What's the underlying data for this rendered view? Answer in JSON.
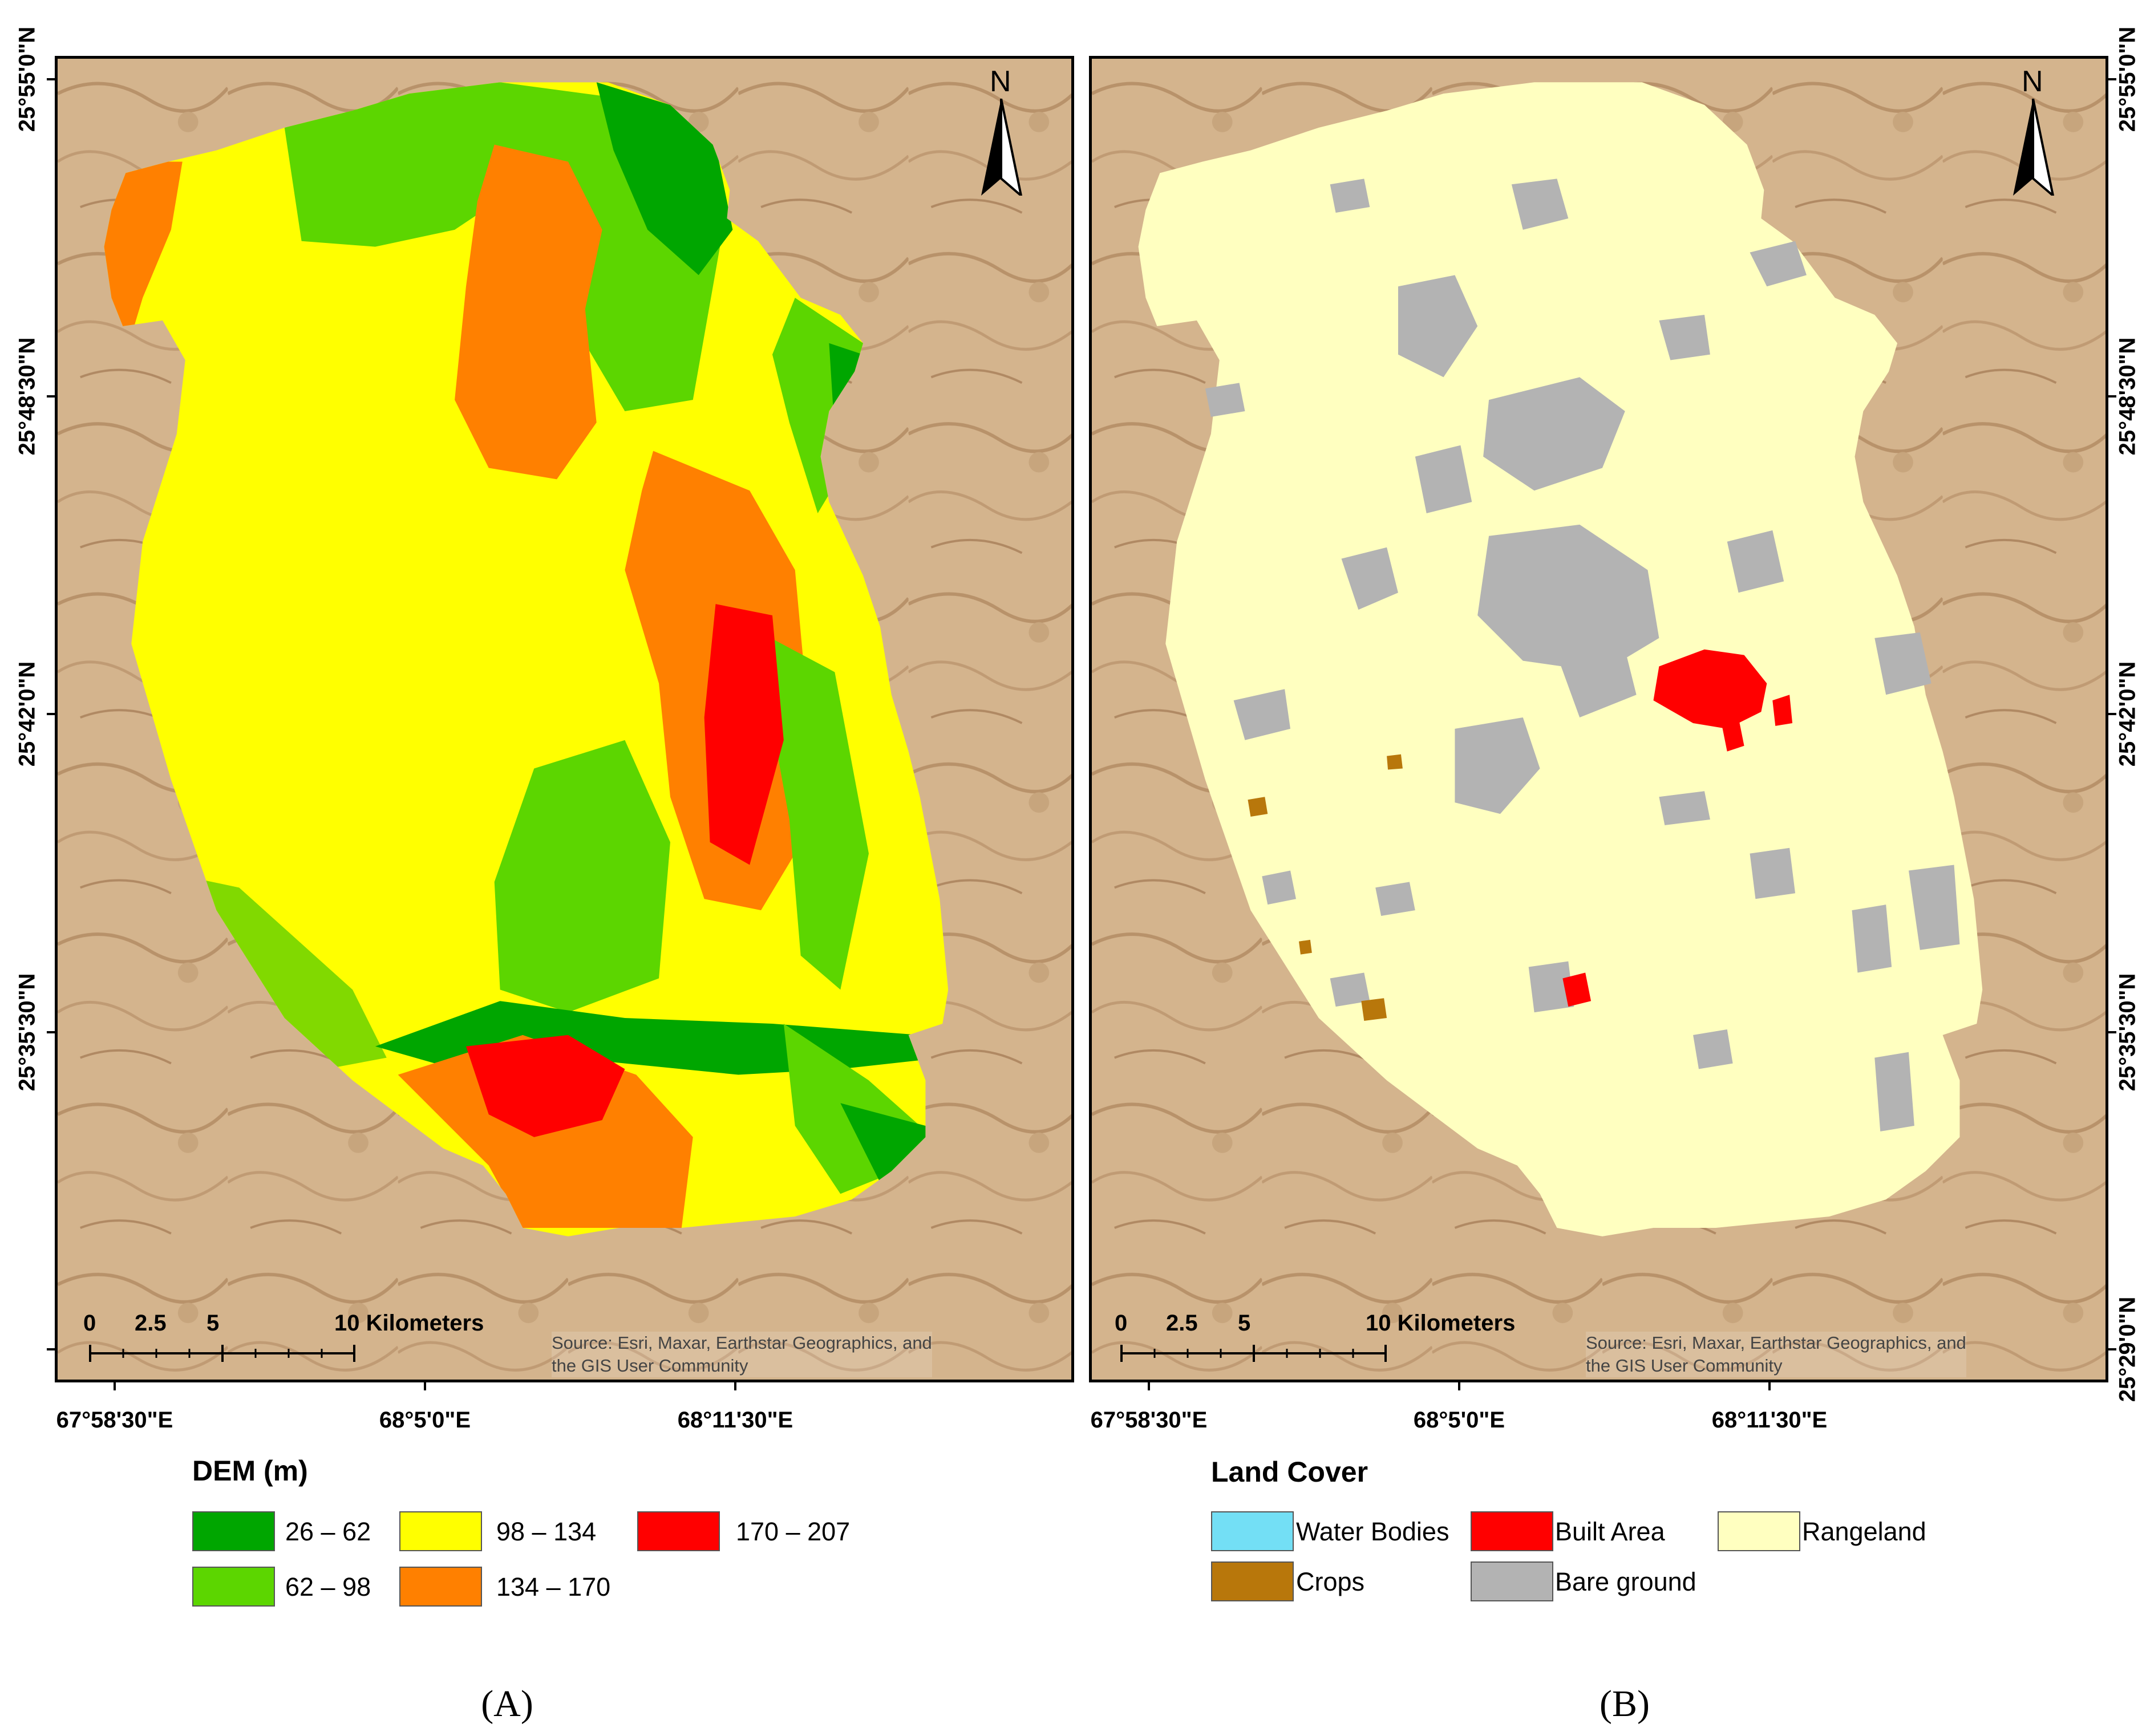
{
  "panels": [
    {
      "id": "A",
      "label": "(A)",
      "source_text": [
        "Source: Esri, Maxar, Earthstar Geographics, and",
        "the GIS User Community"
      ],
      "north_label": "N",
      "scale": {
        "ticks": [
          "0",
          "2.5",
          "5"
        ],
        "end_label": "10 Kilometers"
      },
      "x_labels": [
        "67°58'30\"E",
        "68°5'0\"E",
        "68°11'30\"E"
      ],
      "y_labels": [
        "25°55'0\"N",
        "25°48'30\"N",
        "25°42'0\"N",
        "25°35'30\"N"
      ],
      "legend": {
        "title": "DEM (m)",
        "items": [
          {
            "label": "26 – 62",
            "color": "#00a600"
          },
          {
            "label": "62 – 98",
            "color": "#5cd600"
          },
          {
            "label": "98 – 134",
            "color": "#ffff00"
          },
          {
            "label": "134 – 170",
            "color": "#ff8000"
          },
          {
            "label": "170 – 207",
            "color": "#ff0000"
          }
        ]
      }
    },
    {
      "id": "B",
      "label": "(B)",
      "source_text": [
        "Source: Esri, Maxar, Earthstar Geographics, and",
        "the GIS User Community"
      ],
      "north_label": "N",
      "scale": {
        "ticks": [
          "0",
          "2.5",
          "5"
        ],
        "end_label": "10 Kilometers"
      },
      "x_labels": [
        "67°58'30\"E",
        "68°5'0\"E",
        "68°11'30\"E"
      ],
      "y_labels": [
        "25°55'0\"N",
        "25°48'30\"N",
        "25°42'0\"N",
        "25°35'30\"N",
        "25°29'0\"N"
      ],
      "legend": {
        "title": "Land Cover",
        "items": [
          {
            "label": "Water Bodies",
            "color": "#73dff5"
          },
          {
            "label": "Built Area",
            "color": "#ff0000"
          },
          {
            "label": "Rangeland",
            "color": "#ffffc0"
          },
          {
            "label": "Crops",
            "color": "#b8770b"
          },
          {
            "label": "Bare ground",
            "color": "#b3b3b3"
          }
        ]
      }
    }
  ]
}
